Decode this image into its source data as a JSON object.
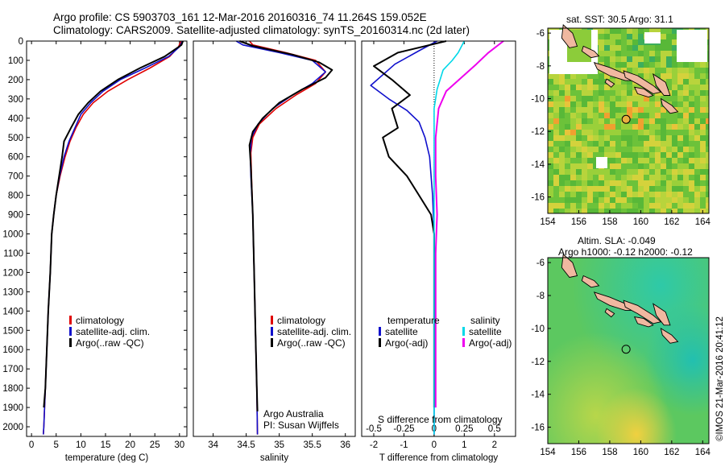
{
  "header": {
    "line1": "Argo profile: CS 5903703_161 12-Mar-2016 20160316_74 11.264S 159.052E",
    "line2": "Climatology: CARS2009. Satellite-adjusted climatology: synTS_20160314.nc (2d later)"
  },
  "footer": {
    "credit": "Argo Australia",
    "pi": "PI: Susan Wijffels",
    "imos": "©IMOS 21-Mar-2016 20:41:12"
  },
  "colors": {
    "climatology": "#e00000",
    "satellite": "#1010cc",
    "argo": "#000000",
    "sal_satellite": "#00d8e8",
    "sal_argo": "#ee00ee"
  },
  "chart_data": [
    {
      "type": "line",
      "name": "temperature-profile",
      "xlabel": "temperature (deg C)",
      "ylabel": "",
      "xlim": [
        -1,
        31.5
      ],
      "ylim": [
        2050,
        0
      ],
      "xticks": [
        "0",
        "5",
        "10",
        "15",
        "20",
        "25",
        "30"
      ],
      "xtick_values": [
        0,
        5,
        10,
        15,
        20,
        25,
        30
      ],
      "yticks": [
        "0",
        "100",
        "200",
        "300",
        "400",
        "500",
        "600",
        "700",
        "800",
        "900",
        "1000",
        "1100",
        "1200",
        "1300",
        "1400",
        "1500",
        "1600",
        "1700",
        "1800",
        "1900",
        "2000"
      ],
      "ytick_values": [
        0,
        100,
        200,
        300,
        400,
        500,
        600,
        700,
        800,
        900,
        1000,
        1100,
        1200,
        1300,
        1400,
        1500,
        1600,
        1700,
        1800,
        1900,
        2000
      ],
      "legend": [
        "climatology",
        "satellite-adj. clim.",
        "Argo(..raw -QC)"
      ],
      "series": [
        {
          "name": "climatology",
          "points": [
            [
              30.3,
              0
            ],
            [
              29.8,
              30
            ],
            [
              28,
              80
            ],
            [
              24,
              140
            ],
            [
              19.5,
              200
            ],
            [
              15.5,
              260
            ],
            [
              12.5,
              320
            ],
            [
              10.5,
              380
            ],
            [
              9,
              450
            ],
            [
              7.8,
              520
            ],
            [
              6.8,
              600
            ],
            [
              5.8,
              700
            ],
            [
              5,
              800
            ],
            [
              4.5,
              900
            ],
            [
              4.1,
              1000
            ],
            [
              3.8,
              1200
            ],
            [
              3.4,
              1400
            ],
            [
              3.1,
              1600
            ],
            [
              2.8,
              1800
            ],
            [
              2.5,
              2000
            ],
            [
              2.4,
              2040
            ]
          ]
        },
        {
          "name": "satellite-adj. clim.",
          "points": [
            [
              30.6,
              0
            ],
            [
              30,
              30
            ],
            [
              27.8,
              80
            ],
            [
              23,
              140
            ],
            [
              18,
              200
            ],
            [
              14.5,
              260
            ],
            [
              12,
              320
            ],
            [
              10,
              380
            ],
            [
              8.8,
              450
            ],
            [
              7.6,
              520
            ],
            [
              6.6,
              600
            ],
            [
              5.7,
              700
            ],
            [
              5,
              800
            ],
            [
              4.5,
              900
            ],
            [
              4.1,
              1000
            ],
            [
              3.8,
              1200
            ],
            [
              3.4,
              1400
            ],
            [
              3.1,
              1600
            ],
            [
              2.8,
              1800
            ],
            [
              2.5,
              2000
            ],
            [
              2.4,
              2040
            ]
          ]
        },
        {
          "name": "Argo(..raw -QC)",
          "points": [
            [
              30.7,
              0
            ],
            [
              30.4,
              20
            ],
            [
              27,
              80
            ],
            [
              22,
              140
            ],
            [
              17.5,
              200
            ],
            [
              14,
              260
            ],
            [
              11.5,
              320
            ],
            [
              9.5,
              380
            ],
            [
              8,
              450
            ],
            [
              6.6,
              520
            ],
            [
              6.2,
              600
            ],
            [
              5.6,
              700
            ],
            [
              5,
              800
            ],
            [
              4.5,
              900
            ],
            [
              4.1,
              1000
            ],
            [
              3.8,
              1200
            ],
            [
              3.4,
              1400
            ],
            [
              3.1,
              1600
            ],
            [
              2.8,
              1800
            ],
            [
              2.5,
              1900
            ]
          ]
        }
      ]
    },
    {
      "type": "line",
      "name": "salinity-profile",
      "xlabel": "salinity",
      "xlim": [
        33.7,
        36.15
      ],
      "ylim": [
        2050,
        0
      ],
      "xticks": [
        "34",
        "34.5",
        "35",
        "35.5",
        "36"
      ],
      "xtick_values": [
        34,
        34.5,
        35,
        35.5,
        36
      ],
      "legend": [
        "climatology",
        "satellite-adj. clim.",
        "Argo(..raw -QC)"
      ],
      "series": [
        {
          "name": "climatology",
          "points": [
            [
              34.55,
              0
            ],
            [
              34.6,
              20
            ],
            [
              35.1,
              60
            ],
            [
              35.55,
              100
            ],
            [
              35.7,
              160
            ],
            [
              35.55,
              220
            ],
            [
              35.25,
              280
            ],
            [
              34.95,
              350
            ],
            [
              34.7,
              430
            ],
            [
              34.6,
              500
            ],
            [
              34.57,
              580
            ],
            [
              34.58,
              700
            ],
            [
              34.6,
              900
            ],
            [
              34.62,
              1200
            ],
            [
              34.64,
              1500
            ],
            [
              34.66,
              1800
            ],
            [
              34.67,
              2040
            ]
          ]
        },
        {
          "name": "satellite-adj. clim.",
          "points": [
            [
              34.35,
              0
            ],
            [
              34.45,
              20
            ],
            [
              35,
              60
            ],
            [
              35.5,
              100
            ],
            [
              35.7,
              160
            ],
            [
              35.5,
              220
            ],
            [
              35.2,
              280
            ],
            [
              34.9,
              350
            ],
            [
              34.68,
              430
            ],
            [
              34.58,
              500
            ],
            [
              34.56,
              580
            ],
            [
              34.57,
              700
            ],
            [
              34.6,
              900
            ],
            [
              34.62,
              1200
            ],
            [
              34.64,
              1500
            ],
            [
              34.66,
              1800
            ],
            [
              34.67,
              2040
            ]
          ]
        },
        {
          "name": "Argo(..raw -QC)",
          "points": [
            [
              34.4,
              0
            ],
            [
              34.6,
              25
            ],
            [
              35.2,
              70
            ],
            [
              35.6,
              110
            ],
            [
              35.8,
              150
            ],
            [
              35.7,
              190
            ],
            [
              35.35,
              250
            ],
            [
              35.0,
              320
            ],
            [
              34.75,
              400
            ],
            [
              34.6,
              470
            ],
            [
              34.55,
              540
            ],
            [
              34.57,
              650
            ],
            [
              34.6,
              900
            ],
            [
              34.62,
              1200
            ],
            [
              34.64,
              1500
            ],
            [
              34.66,
              1800
            ],
            [
              34.67,
              1920
            ]
          ]
        }
      ]
    },
    {
      "type": "line",
      "name": "difference-profile",
      "xlabel": "T difference from climatology",
      "xlabel_top": "S difference from climatology",
      "xlim": [
        -2.4,
        2.7
      ],
      "ylim": [
        2050,
        0
      ],
      "xticks": [
        "-2",
        "-1",
        "0",
        "1",
        "2"
      ],
      "xtick_values": [
        -2,
        -1,
        0,
        1,
        2
      ],
      "xticks_top": [
        "-0.5",
        "-0.25",
        "0",
        "0.25",
        "0.5"
      ],
      "xtick_values_top": [
        -2,
        -1,
        0,
        1,
        2
      ],
      "legend_groups": [
        "temperature",
        "salinity"
      ],
      "legend": [
        "satellite",
        "Argo(-adj)",
        "satellite",
        "Argo(-adj)"
      ],
      "series": [
        {
          "name": "satellite",
          "group": "temperature",
          "points": [
            [
              0.1,
              0
            ],
            [
              -0.5,
              50
            ],
            [
              -1.3,
              120
            ],
            [
              -2.1,
              230
            ],
            [
              -1.5,
              300
            ],
            [
              -0.9,
              360
            ],
            [
              -0.5,
              420
            ],
            [
              -0.3,
              500
            ],
            [
              -0.15,
              600
            ],
            [
              -0.05,
              800
            ],
            [
              0,
              1000
            ],
            [
              0,
              1500
            ],
            [
              0,
              2040
            ]
          ]
        },
        {
          "name": "Argo(-adj)",
          "group": "temperature",
          "points": [
            [
              0.4,
              0
            ],
            [
              -1.2,
              60
            ],
            [
              -2.0,
              130
            ],
            [
              -1.4,
              200
            ],
            [
              -0.8,
              280
            ],
            [
              -1.4,
              350
            ],
            [
              -1.2,
              450
            ],
            [
              -1.7,
              500
            ],
            [
              -1.5,
              600
            ],
            [
              -0.9,
              700
            ],
            [
              -0.5,
              800
            ],
            [
              -0.1,
              900
            ],
            [
              0,
              1000
            ],
            [
              0,
              1500
            ],
            [
              0,
              1900
            ]
          ]
        },
        {
          "name": "satellite",
          "group": "salinity",
          "points": [
            [
              1.0,
              0
            ],
            [
              0.8,
              60
            ],
            [
              0.6,
              100
            ],
            [
              0.3,
              150
            ],
            [
              0.1,
              250
            ],
            [
              0,
              350
            ],
            [
              0,
              600
            ],
            [
              0,
              1000
            ],
            [
              0,
              2040
            ]
          ]
        },
        {
          "name": "Argo(-adj)",
          "group": "salinity",
          "points": [
            [
              2.3,
              0
            ],
            [
              1.8,
              60
            ],
            [
              1.4,
              120
            ],
            [
              0.9,
              190
            ],
            [
              0.4,
              260
            ],
            [
              0.15,
              350
            ],
            [
              0.05,
              500
            ],
            [
              0.05,
              700
            ],
            [
              0.1,
              900
            ],
            [
              0.05,
              1100
            ],
            [
              0.05,
              1500
            ],
            [
              0.05,
              1900
            ]
          ]
        }
      ]
    },
    {
      "type": "heatmap",
      "name": "sst-map",
      "title": "sat. SST: 30.5 Argo: 31.1",
      "xlim": [
        154,
        164.4
      ],
      "ylim": [
        -17,
        -5.7
      ],
      "xticks": [
        "154",
        "156",
        "158",
        "160",
        "162",
        "164"
      ],
      "xtick_values": [
        154,
        156,
        158,
        160,
        162,
        164
      ],
      "yticks": [
        "-6",
        "-8",
        "-10",
        "-12",
        "-14",
        "-16"
      ],
      "ytick_values": [
        -6,
        -8,
        -10,
        -12,
        -14,
        -16
      ],
      "float_position": [
        159.052,
        -11.264
      ]
    },
    {
      "type": "heatmap",
      "name": "sla-map",
      "title": "Altim. SLA: -0.049",
      "subtitle": "Argo h1000: -0.12 h2000: -0.12",
      "xlim": [
        154,
        164.4
      ],
      "ylim": [
        -17,
        -5.7
      ],
      "xticks": [
        "154",
        "156",
        "158",
        "160",
        "162",
        "164"
      ],
      "xtick_values": [
        154,
        156,
        158,
        160,
        162,
        164
      ],
      "yticks": [
        "-6",
        "-8",
        "-10",
        "-12",
        "-14",
        "-16"
      ],
      "ytick_values": [
        -6,
        -8,
        -10,
        -12,
        -14,
        -16
      ],
      "float_position": [
        159.052,
        -11.264
      ]
    }
  ]
}
